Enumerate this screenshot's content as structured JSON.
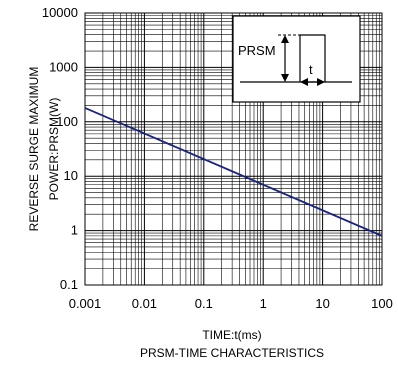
{
  "chart_data": {
    "type": "line",
    "x_scale": "log",
    "y_scale": "log",
    "xlim": [
      0.001,
      100
    ],
    "ylim": [
      0.1,
      10000
    ],
    "x_ticks": [
      "0.001",
      "0.01",
      "0.1",
      "1",
      "10",
      "100"
    ],
    "y_ticks": [
      "0.1",
      "1",
      "10",
      "100",
      "1000",
      "10000"
    ],
    "xlabel": "TIME:t(ms)",
    "ylabel_line1": "REVERSE SURGE MAXIMUM",
    "ylabel_line2": "POWER:PRSM(W)",
    "caption": "PRSM-TIME CHARACTERISTICS",
    "grid": true,
    "line_color": "#1a237e",
    "series": [
      {
        "x": [
          0.001,
          100
        ],
        "y": [
          180,
          0.8
        ]
      }
    ],
    "inset": {
      "label": "PRSM",
      "t_label": "t"
    }
  }
}
